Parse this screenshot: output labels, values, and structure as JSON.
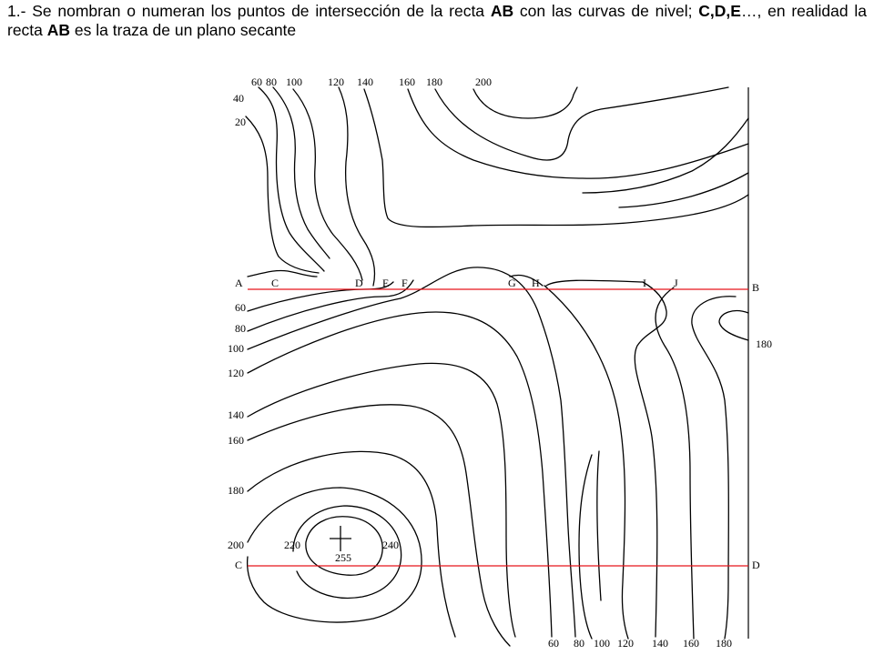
{
  "caption": {
    "p1": "1.- Se nombran o numeran los puntos de intersección de la recta ",
    "b1": "AB",
    "p2": " con las curvas de nivel; ",
    "b2": "C,D,E",
    "p3": "…, en realidad la recta ",
    "b3": "AB",
    "p4": " es la traza de un plano secante"
  },
  "map": {
    "top_labels": [
      "60",
      "80",
      "100",
      "120",
      "140",
      "160",
      "180",
      "200"
    ],
    "left_top_labels": [
      "40",
      "20"
    ],
    "left_labels": [
      "60",
      "80",
      "100",
      "120",
      "140",
      "160",
      "180",
      "200"
    ],
    "bottom_labels": [
      "60",
      "80",
      "100",
      "120",
      "140",
      "160",
      "180"
    ],
    "right_label": "180",
    "hill_labels": [
      "220",
      "240"
    ],
    "summit_label": "255",
    "line_ab": {
      "start": "A",
      "end": "B",
      "points": [
        "C",
        "D",
        "E",
        "F",
        "G",
        "H",
        "I",
        "J"
      ]
    },
    "line_cd": {
      "start": "C",
      "end": "D"
    },
    "colors": {
      "contour": "#000000",
      "section_line": "#e8141b"
    }
  }
}
